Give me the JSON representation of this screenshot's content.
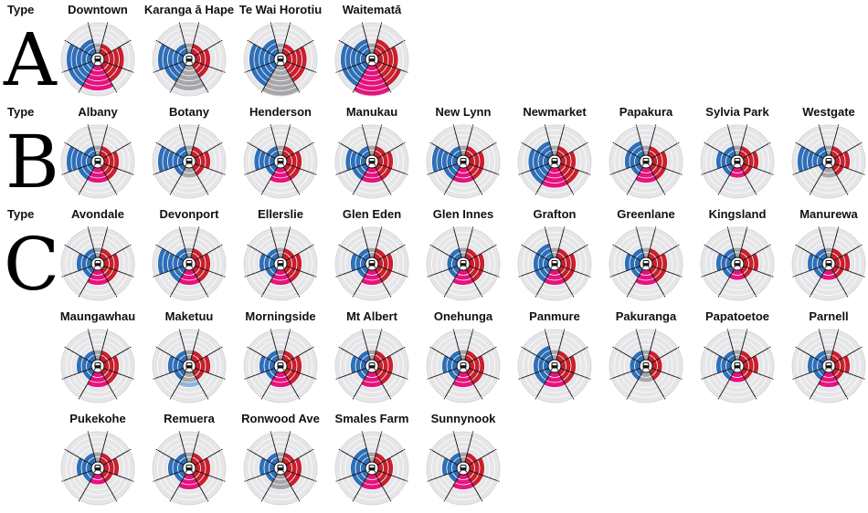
{
  "colors": {
    "ring_bg": "#e6e6e9",
    "ring_line": "#ffffff",
    "spoke": "#111111",
    "blue": "#2f6fb8",
    "light_blue": "#8fb4df",
    "red": "#c8202e",
    "pink": "#e5137d",
    "gray": "#a7a7ab",
    "center_bg": "#ffffff"
  },
  "type_heading": "Type",
  "groups": [
    {
      "type": "A",
      "stations": [
        {
          "name": "Downtown",
          "values": [
            2,
            4,
            4,
            5,
            5,
            5,
            3,
            2
          ],
          "lightblue": [
            0,
            0,
            3,
            0,
            0,
            0,
            0,
            0
          ],
          "bottom": "pink"
        },
        {
          "name": "Karanga ā Hape",
          "values": [
            2,
            3,
            3,
            5,
            4,
            5,
            2,
            2
          ],
          "lightblue": [
            0,
            0,
            3,
            0,
            0,
            0,
            0,
            0
          ],
          "bottom": "gray"
        },
        {
          "name": "Te Wai Horotiu",
          "values": [
            2,
            4,
            4,
            6,
            5,
            5,
            3,
            2
          ],
          "lightblue": [
            0,
            0,
            0,
            0,
            0,
            0,
            0,
            0
          ],
          "bottom": "gray"
        },
        {
          "name": "Waitematā",
          "values": [
            3,
            4,
            5,
            6,
            5,
            5,
            3,
            2
          ],
          "lightblue": [
            0,
            0,
            0,
            0,
            0,
            0,
            0,
            0
          ],
          "bottom": "pink"
        }
      ]
    },
    {
      "type": "B",
      "stations": [
        {
          "name": "Albany",
          "values": [
            2,
            3,
            3,
            3,
            3,
            5,
            2,
            2
          ],
          "lightblue": [
            0,
            0,
            0,
            0,
            0,
            0,
            0,
            0
          ],
          "bottom": "pink"
        },
        {
          "name": "Botany",
          "values": [
            2,
            3,
            2,
            2,
            2,
            5,
            2,
            2
          ],
          "lightblue": [
            0,
            0,
            0,
            0,
            0,
            0,
            0,
            0
          ],
          "bottom": "gray"
        },
        {
          "name": "Henderson",
          "values": [
            2,
            3,
            3,
            3,
            2,
            4,
            2,
            2
          ],
          "lightblue": [
            0,
            0,
            0,
            0,
            0,
            0,
            0,
            0
          ],
          "bottom": "pink"
        },
        {
          "name": "Manukau",
          "values": [
            2,
            3,
            3,
            3,
            3,
            4,
            2,
            2
          ],
          "lightblue": [
            0,
            0,
            0,
            0,
            0,
            0,
            0,
            0
          ],
          "bottom": "pink"
        },
        {
          "name": "New Lynn",
          "values": [
            2,
            3,
            3,
            3,
            3,
            5,
            2,
            2
          ],
          "lightblue": [
            0,
            0,
            0,
            0,
            0,
            0,
            0,
            0
          ],
          "bottom": "pink"
        },
        {
          "name": "Newmarket",
          "values": [
            2,
            3,
            4,
            4,
            4,
            4,
            3,
            2
          ],
          "lightblue": [
            0,
            0,
            0,
            0,
            0,
            0,
            0,
            0
          ],
          "bottom": "pink"
        },
        {
          "name": "Papakura",
          "values": [
            2,
            3,
            3,
            3,
            2,
            3,
            3,
            2
          ],
          "lightblue": [
            0,
            0,
            0,
            0,
            0,
            0,
            0,
            0
          ],
          "bottom": "pink"
        },
        {
          "name": "Sylvia Park",
          "values": [
            2,
            3,
            2,
            2,
            2,
            3,
            2,
            2
          ],
          "lightblue": [
            0,
            0,
            0,
            0,
            0,
            0,
            0,
            0
          ],
          "bottom": "pink"
        },
        {
          "name": "Westgate",
          "values": [
            2,
            3,
            2,
            2,
            1,
            5,
            2,
            2
          ],
          "lightblue": [
            0,
            0,
            0,
            0,
            0,
            0,
            0,
            0
          ],
          "bottom": "gray"
        }
      ]
    },
    {
      "type": "C",
      "stations": [
        {
          "name": "Avondale",
          "values": [
            2,
            3,
            3,
            3,
            2,
            3,
            2,
            2
          ],
          "lightblue": [
            0,
            0,
            0,
            0,
            0,
            0,
            0,
            0
          ],
          "bottom": "pink"
        },
        {
          "name": "Devonport",
          "values": [
            2,
            3,
            3,
            3,
            3,
            5,
            2,
            2
          ],
          "lightblue": [
            0,
            0,
            0,
            0,
            0,
            0,
            0,
            0
          ],
          "bottom": "pink"
        },
        {
          "name": "Ellerslie",
          "values": [
            2,
            3,
            3,
            3,
            2,
            3,
            2,
            2
          ],
          "lightblue": [
            0,
            0,
            0,
            0,
            0,
            0,
            0,
            0
          ],
          "bottom": "pink"
        },
        {
          "name": "Glen Eden",
          "values": [
            2,
            3,
            3,
            3,
            2,
            3,
            2,
            2
          ],
          "lightblue": [
            0,
            0,
            0,
            0,
            0,
            0,
            0,
            0
          ],
          "bottom": "pink"
        },
        {
          "name": "Glen Innes",
          "values": [
            2,
            3,
            3,
            3,
            2,
            2,
            2,
            2
          ],
          "lightblue": [
            0,
            0,
            0,
            0,
            0,
            0,
            0,
            0
          ],
          "bottom": "pink"
        },
        {
          "name": "Grafton",
          "values": [
            2,
            3,
            3,
            3,
            3,
            3,
            3,
            2
          ],
          "lightblue": [
            0,
            0,
            0,
            0,
            0,
            0,
            0,
            0
          ],
          "bottom": "pink"
        },
        {
          "name": "Greenlane",
          "values": [
            2,
            3,
            3,
            3,
            2,
            3,
            2,
            2
          ],
          "lightblue": [
            0,
            0,
            0,
            0,
            0,
            0,
            0,
            0
          ],
          "bottom": "pink"
        },
        {
          "name": "Kingsland",
          "values": [
            2,
            3,
            2,
            2,
            2,
            3,
            2,
            2
          ],
          "lightblue": [
            0,
            0,
            2,
            0,
            0,
            0,
            0,
            0
          ],
          "bottom": "pink"
        },
        {
          "name": "Manurewa",
          "values": [
            2,
            3,
            2,
            2,
            2,
            3,
            2,
            2
          ],
          "lightblue": [
            0,
            0,
            0,
            0,
            0,
            0,
            0,
            0
          ],
          "bottom": "pink"
        },
        {
          "name": "Maungawhau",
          "values": [
            2,
            3,
            3,
            3,
            2,
            3,
            2,
            2
          ],
          "lightblue": [
            0,
            0,
            0,
            0,
            0,
            0,
            0,
            0
          ],
          "bottom": "pink"
        },
        {
          "name": "Maketuu",
          "values": [
            2,
            3,
            2,
            2,
            2,
            3,
            2,
            2
          ],
          "lightblue": [
            0,
            0,
            2,
            3,
            0,
            0,
            0,
            0
          ],
          "bottom": "gray"
        },
        {
          "name": "Morningside",
          "values": [
            2,
            3,
            3,
            3,
            2,
            3,
            2,
            2
          ],
          "lightblue": [
            0,
            0,
            0,
            0,
            0,
            0,
            0,
            0
          ],
          "bottom": "pink"
        },
        {
          "name": "Mt Albert",
          "values": [
            2,
            3,
            3,
            3,
            2,
            3,
            2,
            2
          ],
          "lightblue": [
            0,
            0,
            0,
            0,
            0,
            0,
            0,
            0
          ],
          "bottom": "pink"
        },
        {
          "name": "Onehunga",
          "values": [
            2,
            3,
            3,
            3,
            2,
            3,
            2,
            2
          ],
          "lightblue": [
            0,
            0,
            0,
            0,
            0,
            0,
            0,
            0
          ],
          "bottom": "pink"
        },
        {
          "name": "Panmure",
          "values": [
            2,
            3,
            3,
            3,
            3,
            3,
            3,
            2
          ],
          "lightblue": [
            0,
            0,
            0,
            0,
            0,
            0,
            0,
            0
          ],
          "bottom": "pink"
        },
        {
          "name": "Pakuranga",
          "values": [
            2,
            2,
            2,
            2,
            2,
            2,
            2,
            2
          ],
          "lightblue": [
            0,
            0,
            0,
            0,
            0,
            0,
            0,
            0
          ],
          "bottom": "gray"
        },
        {
          "name": "Papatoetoe",
          "values": [
            2,
            3,
            2,
            2,
            2,
            3,
            2,
            2
          ],
          "lightblue": [
            0,
            0,
            0,
            0,
            0,
            0,
            0,
            0
          ],
          "bottom": "pink"
        },
        {
          "name": "Parnell",
          "values": [
            2,
            3,
            2,
            3,
            2,
            3,
            2,
            2
          ],
          "lightblue": [
            0,
            0,
            0,
            0,
            0,
            0,
            0,
            0
          ],
          "bottom": "pink"
        },
        {
          "name": "Pukekohe",
          "values": [
            2,
            3,
            2,
            2,
            2,
            3,
            2,
            2
          ],
          "lightblue": [
            0,
            0,
            0,
            0,
            0,
            0,
            0,
            0
          ],
          "bottom": "pink"
        },
        {
          "name": "Remuera",
          "values": [
            2,
            3,
            3,
            3,
            2,
            3,
            2,
            2
          ],
          "lightblue": [
            0,
            0,
            0,
            0,
            0,
            0,
            0,
            0
          ],
          "bottom": "pink"
        },
        {
          "name": "Ronwood Ave",
          "values": [
            2,
            3,
            3,
            3,
            2,
            3,
            2,
            2
          ],
          "lightblue": [
            0,
            0,
            0,
            0,
            0,
            0,
            0,
            0
          ],
          "bottom": "gray"
        },
        {
          "name": "Smales Farm",
          "values": [
            2,
            3,
            3,
            3,
            3,
            3,
            3,
            2
          ],
          "lightblue": [
            0,
            0,
            0,
            0,
            0,
            0,
            0,
            0
          ],
          "bottom": "pink"
        },
        {
          "name": "Sunnynook",
          "values": [
            2,
            3,
            3,
            3,
            2,
            3,
            2,
            2
          ],
          "lightblue": [
            0,
            0,
            0,
            0,
            0,
            0,
            0,
            0
          ],
          "bottom": "pink"
        }
      ]
    }
  ]
}
